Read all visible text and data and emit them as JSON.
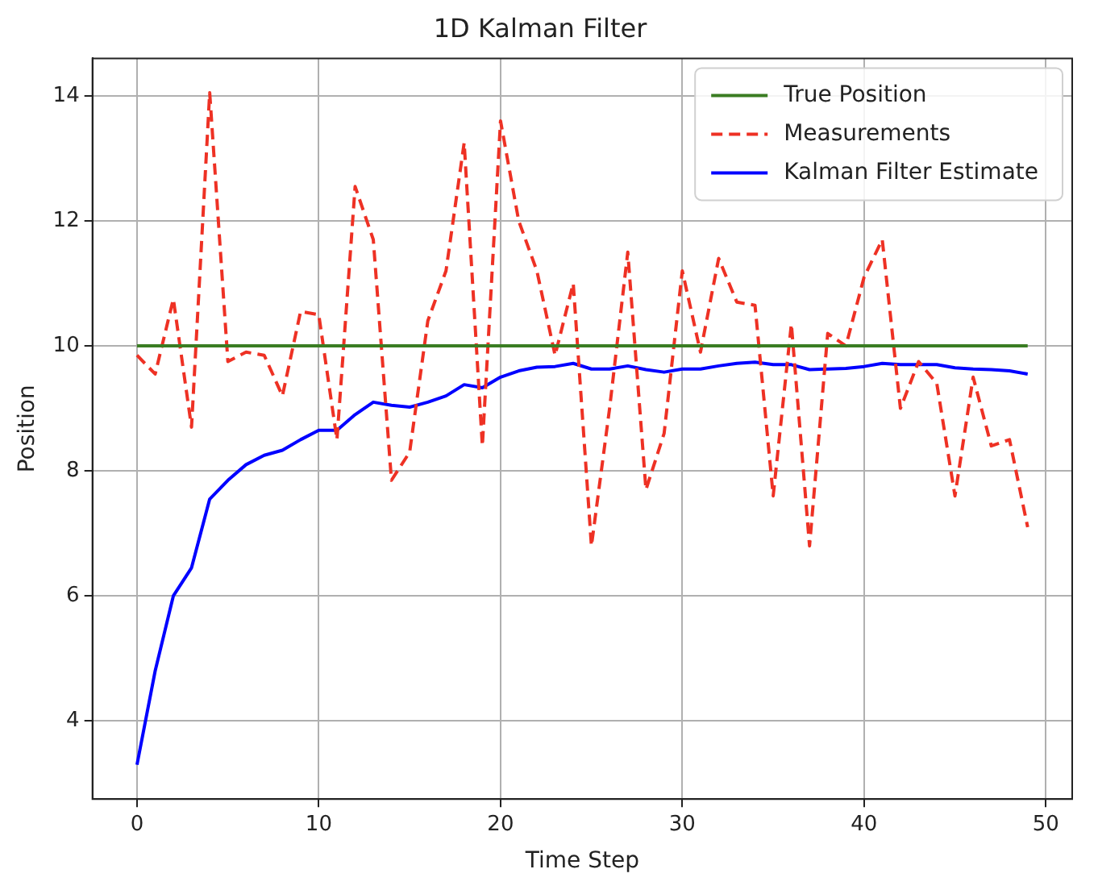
{
  "chart_data": {
    "type": "line",
    "title": "1D Kalman Filter",
    "xlabel": "Time Step",
    "ylabel": "Position",
    "x": [
      0,
      1,
      2,
      3,
      4,
      5,
      6,
      7,
      8,
      9,
      10,
      11,
      12,
      13,
      14,
      15,
      16,
      17,
      18,
      19,
      20,
      21,
      22,
      23,
      24,
      25,
      26,
      27,
      28,
      29,
      30,
      31,
      32,
      33,
      34,
      35,
      36,
      37,
      38,
      39,
      40,
      41,
      42,
      43,
      44,
      45,
      46,
      47,
      48,
      49
    ],
    "series": [
      {
        "name": "True Position",
        "color": "#3a7d22",
        "line_style": "solid",
        "values": [
          10,
          10,
          10,
          10,
          10,
          10,
          10,
          10,
          10,
          10,
          10,
          10,
          10,
          10,
          10,
          10,
          10,
          10,
          10,
          10,
          10,
          10,
          10,
          10,
          10,
          10,
          10,
          10,
          10,
          10,
          10,
          10,
          10,
          10,
          10,
          10,
          10,
          10,
          10,
          10,
          10,
          10,
          10,
          10,
          10,
          10,
          10,
          10,
          10,
          10
        ]
      },
      {
        "name": "Measurements",
        "color": "#ee3124",
        "line_style": "dashed",
        "values": [
          9.85,
          9.55,
          10.75,
          8.7,
          14.05,
          9.75,
          9.9,
          9.85,
          9.2,
          10.55,
          10.5,
          8.5,
          12.55,
          11.7,
          7.85,
          8.3,
          10.4,
          11.2,
          13.25,
          8.4,
          13.6,
          12.0,
          11.2,
          9.85,
          11.0,
          6.8,
          9.0,
          11.5,
          7.7,
          8.6,
          11.2,
          9.9,
          11.4,
          10.7,
          10.65,
          7.6,
          10.35,
          6.8,
          10.2,
          10.0,
          11.1,
          11.7,
          9.0,
          9.75,
          9.4,
          7.6,
          9.5,
          8.4,
          8.5,
          7.1
        ]
      },
      {
        "name": "Kalman Filter Estimate",
        "color": "#0000ff",
        "line_style": "solid",
        "values": [
          3.3,
          4.8,
          6.0,
          6.45,
          7.55,
          7.85,
          8.1,
          8.25,
          8.33,
          8.5,
          8.65,
          8.65,
          8.9,
          9.1,
          9.05,
          9.02,
          9.1,
          9.2,
          9.38,
          9.33,
          9.5,
          9.6,
          9.66,
          9.67,
          9.72,
          9.63,
          9.63,
          9.68,
          9.62,
          9.58,
          9.63,
          9.63,
          9.68,
          9.72,
          9.74,
          9.7,
          9.7,
          9.62,
          9.63,
          9.64,
          9.67,
          9.72,
          9.7,
          9.7,
          9.7,
          9.65,
          9.63,
          9.62,
          9.6,
          9.55
        ]
      }
    ],
    "xlim": [
      -2.45,
      51.45
    ],
    "xticks": [
      0,
      10,
      20,
      30,
      40,
      50
    ],
    "ylim": [
      2.75,
      14.6
    ],
    "yticks": [
      4,
      6,
      8,
      10,
      12,
      14
    ],
    "grid": true,
    "legend": "top right",
    "marker": "none"
  }
}
